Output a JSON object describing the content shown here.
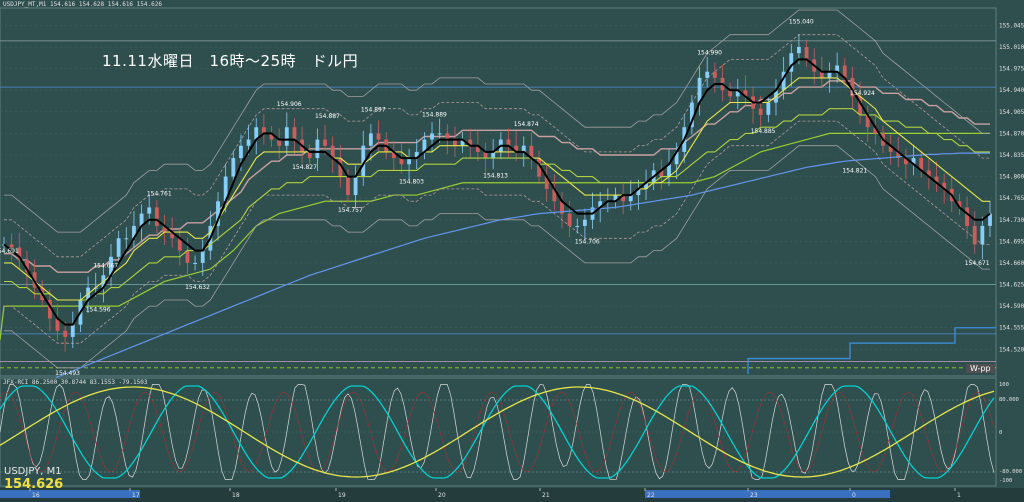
{
  "header": {
    "symbol_line": "USDJPY_MT,M1  154.616 154.628 154.616 154.626",
    "title": "11.11水曜日　16時～25時　ドル円"
  },
  "bottom_left": {
    "symbol": "USDJPY, M1",
    "price": "154.626"
  },
  "indicator_header": "JFX-RCI 86.2500 30.8744 83.1553 -79.1503",
  "wpp_label": "W-pp",
  "colors": {
    "background": "#2f4f4f",
    "candle_up": "#87cefa",
    "candle_down": "#cd5c5c",
    "ma_black": "#000000",
    "ma_yellow": "#e6e64a",
    "ma_lightgreen": "#b0d040",
    "step_green": "#9acd32",
    "ma_blue": "#6495ed",
    "band_gray": "#a0a0a0",
    "envelope_rose": "#b49a9a",
    "rci_white": "#dcdcdc",
    "rci_cyan": "#00d0d0",
    "rci_yellow": "#e6e64a",
    "rci_red": "#a03030"
  },
  "chart_data": {
    "type": "candlestick",
    "price_axis_ticks": [
      "155.045",
      "155.010",
      "154.975",
      "154.940",
      "154.905",
      "154.870",
      "154.835",
      "154.800",
      "154.765",
      "154.730",
      "154.695",
      "154.660",
      "154.625",
      "154.590",
      "154.555",
      "154.520"
    ],
    "price_axis_range": [
      154.48,
      155.07
    ],
    "time_ticks": [
      "16",
      "17",
      "18",
      "19",
      "20",
      "21",
      "22",
      "23",
      "0",
      "1"
    ],
    "annotations": [
      {
        "label": "154.691",
        "x": 0.0,
        "price": 154.691
      },
      {
        "label": "154.667",
        "x": 12.5,
        "price": 154.667
      },
      {
        "label": "154.596",
        "x": 12.0,
        "price": 154.596
      },
      {
        "label": "154.493",
        "x": 8.3,
        "price": 154.493
      },
      {
        "label": "154.761",
        "x": 20.0,
        "price": 154.761
      },
      {
        "label": "154.632",
        "x": 25.0,
        "price": 154.632
      },
      {
        "label": "154.906",
        "x": 37.0,
        "price": 154.906
      },
      {
        "label": "154.887",
        "x": 42.0,
        "price": 154.887
      },
      {
        "label": "154.827",
        "x": 38.5,
        "price": 154.827
      },
      {
        "label": "154.897",
        "x": 48.0,
        "price": 154.897
      },
      {
        "label": "154.757",
        "x": 45.0,
        "price": 154.757
      },
      {
        "label": "154.889",
        "x": 56.0,
        "price": 154.889
      },
      {
        "label": "154.803",
        "x": 52.5,
        "price": 154.803
      },
      {
        "label": "154.813",
        "x": 64.0,
        "price": 154.813
      },
      {
        "label": "154.874",
        "x": 68.0,
        "price": 154.874
      },
      {
        "label": "154.706",
        "x": 75.5,
        "price": 154.706
      },
      {
        "label": "154.990",
        "x": 92.0,
        "price": 154.99
      },
      {
        "label": "154.885",
        "x": 98.5,
        "price": 154.885
      },
      {
        "label": "155.040",
        "x": 103.5,
        "price": 155.04
      },
      {
        "label": "154.924",
        "x": 112.0,
        "price": 154.924
      },
      {
        "label": "154.821",
        "x": 111.0,
        "price": 154.821
      },
      {
        "label": "154.671",
        "x": 126.5,
        "price": 154.671
      }
    ],
    "closes": [
      154.69,
      154.685,
      154.665,
      154.645,
      154.62,
      154.6,
      154.57,
      154.55,
      154.54,
      154.56,
      154.6,
      154.62,
      154.62,
      154.64,
      154.67,
      154.7,
      154.7,
      154.72,
      154.74,
      154.75,
      154.72,
      154.71,
      154.7,
      154.68,
      154.66,
      154.66,
      154.68,
      154.72,
      154.76,
      154.8,
      154.83,
      154.85,
      154.86,
      154.88,
      154.87,
      154.86,
      154.85,
      154.88,
      154.86,
      154.84,
      154.83,
      154.86,
      154.85,
      154.83,
      154.8,
      154.77,
      154.8,
      154.85,
      154.87,
      154.86,
      154.84,
      154.83,
      154.82,
      154.83,
      154.84,
      154.86,
      154.87,
      154.87,
      154.86,
      154.85,
      154.86,
      154.85,
      154.84,
      154.83,
      154.84,
      154.86,
      154.85,
      154.84,
      154.85,
      154.83,
      154.8,
      154.78,
      154.76,
      154.74,
      154.72,
      154.72,
      154.73,
      154.75,
      154.76,
      154.76,
      154.77,
      154.76,
      154.77,
      154.78,
      154.79,
      154.81,
      154.8,
      154.82,
      154.84,
      154.88,
      154.92,
      154.96,
      154.97,
      154.96,
      154.94,
      154.93,
      154.94,
      154.93,
      154.91,
      154.9,
      154.92,
      154.94,
      154.97,
      155.0,
      155.01,
      154.99,
      154.97,
      154.96,
      154.97,
      154.98,
      154.96,
      154.93,
      154.9,
      154.88,
      154.87,
      154.85,
      154.84,
      154.83,
      154.82,
      154.83,
      154.81,
      154.8,
      154.79,
      154.78,
      154.76,
      154.75,
      154.72,
      154.69,
      154.72,
      154.74
    ],
    "black_ma": [
      154.69,
      154.68,
      154.67,
      154.65,
      154.63,
      154.61,
      154.59,
      154.57,
      154.56,
      154.56,
      154.58,
      154.6,
      154.61,
      154.62,
      154.64,
      154.66,
      154.68,
      154.7,
      154.72,
      154.73,
      154.73,
      154.72,
      154.71,
      154.7,
      154.69,
      154.68,
      154.68,
      154.7,
      154.73,
      154.76,
      154.79,
      154.82,
      154.84,
      154.86,
      154.87,
      154.87,
      154.86,
      154.86,
      154.86,
      154.85,
      154.84,
      154.84,
      154.84,
      154.83,
      154.82,
      154.8,
      154.8,
      154.82,
      154.84,
      154.85,
      154.85,
      154.84,
      154.83,
      154.83,
      154.83,
      154.84,
      154.85,
      154.86,
      154.86,
      154.86,
      154.86,
      154.85,
      154.85,
      154.84,
      154.84,
      154.85,
      154.85,
      154.84,
      154.84,
      154.83,
      154.82,
      154.8,
      154.78,
      154.76,
      154.75,
      154.74,
      154.74,
      154.74,
      154.75,
      154.76,
      154.76,
      154.77,
      154.77,
      154.78,
      154.79,
      154.8,
      154.81,
      154.82,
      154.84,
      154.86,
      154.89,
      154.92,
      154.94,
      154.95,
      154.95,
      154.94,
      154.94,
      154.93,
      154.92,
      154.92,
      154.93,
      154.94,
      154.96,
      154.98,
      154.99,
      154.99,
      154.98,
      154.97,
      154.97,
      154.97,
      154.96,
      154.94,
      154.92,
      154.9,
      154.88,
      154.86,
      154.85,
      154.84,
      154.83,
      154.82,
      154.81,
      154.8,
      154.79,
      154.78,
      154.77,
      154.75,
      154.74,
      154.73,
      154.73,
      154.74
    ],
    "yellow_ma": [
      154.66,
      154.66,
      154.65,
      154.64,
      154.63,
      154.62,
      154.61,
      154.6,
      154.6,
      154.6,
      154.6,
      154.61,
      154.62,
      154.63,
      154.64,
      154.65,
      154.66,
      154.68,
      154.69,
      154.7,
      154.7,
      154.71,
      154.71,
      154.71,
      154.71,
      154.7,
      154.7,
      154.71,
      154.73,
      154.75,
      154.77,
      154.79,
      154.81,
      154.83,
      154.84,
      154.84,
      154.84,
      154.84,
      154.84,
      154.84,
      154.84,
      154.84,
      154.84,
      154.83,
      154.83,
      154.82,
      154.82,
      154.82,
      154.83,
      154.84,
      154.84,
      154.84,
      154.84,
      154.83,
      154.83,
      154.84,
      154.84,
      154.85,
      154.85,
      154.85,
      154.85,
      154.85,
      154.85,
      154.84,
      154.84,
      154.84,
      154.84,
      154.84,
      154.84,
      154.83,
      154.83,
      154.82,
      154.81,
      154.8,
      154.79,
      154.78,
      154.77,
      154.77,
      154.77,
      154.77,
      154.77,
      154.77,
      154.77,
      154.78,
      154.78,
      154.79,
      154.79,
      154.8,
      154.81,
      154.83,
      154.85,
      154.87,
      154.89,
      154.9,
      154.91,
      154.92,
      154.92,
      154.92,
      154.92,
      154.92,
      154.92,
      154.93,
      154.94,
      154.95,
      154.96,
      154.96,
      154.96,
      154.96,
      154.96,
      154.96,
      154.95,
      154.94,
      154.93,
      154.92,
      154.91,
      154.89,
      154.88,
      154.87,
      154.86,
      154.85,
      154.84,
      154.83,
      154.82,
      154.81,
      154.8,
      154.79,
      154.78,
      154.77,
      154.76,
      154.76
    ],
    "lightgreen_ma": [
      154.63,
      154.63,
      154.62,
      154.62,
      154.61,
      154.61,
      154.61,
      154.6,
      154.6,
      154.6,
      154.6,
      154.6,
      154.61,
      154.61,
      154.62,
      154.62,
      154.63,
      154.64,
      154.65,
      154.66,
      154.66,
      154.67,
      154.67,
      154.67,
      154.68,
      154.68,
      154.68,
      154.69,
      154.7,
      154.71,
      154.72,
      154.73,
      154.75,
      154.76,
      154.77,
      154.78,
      154.78,
      154.79,
      154.79,
      154.79,
      154.8,
      154.8,
      154.8,
      154.8,
      154.8,
      154.8,
      154.8,
      154.8,
      154.8,
      154.81,
      154.81,
      154.81,
      154.81,
      154.81,
      154.81,
      154.82,
      154.82,
      154.82,
      154.82,
      154.82,
      154.83,
      154.83,
      154.83,
      154.83,
      154.83,
      154.83,
      154.83,
      154.83,
      154.83,
      154.83,
      154.82,
      154.82,
      154.82,
      154.81,
      154.81,
      154.8,
      154.8,
      154.8,
      154.79,
      154.79,
      154.79,
      154.79,
      154.79,
      154.79,
      154.79,
      154.79,
      154.8,
      154.8,
      154.8,
      154.81,
      154.82,
      154.83,
      154.84,
      154.84,
      154.85,
      154.86,
      154.86,
      154.87,
      154.87,
      154.88,
      154.88,
      154.88,
      154.89,
      154.89,
      154.9,
      154.9,
      154.9,
      154.9,
      154.91,
      154.91,
      154.91,
      154.91,
      154.9,
      154.9,
      154.9,
      154.89,
      154.89,
      154.89,
      154.88,
      154.88,
      154.88,
      154.87,
      154.87,
      154.86,
      154.86,
      154.85,
      154.85,
      154.84,
      154.84,
      154.84
    ],
    "blue_ma": [
      154.44,
      154.445,
      154.45,
      154.455,
      154.46,
      154.465,
      154.47,
      154.475,
      154.48,
      154.485,
      154.49,
      154.495,
      154.5,
      154.505,
      154.51,
      154.515,
      154.52,
      154.525,
      154.53,
      154.535,
      154.54,
      154.545,
      154.55,
      154.555,
      154.56,
      154.565,
      154.57,
      154.575,
      154.58,
      154.585,
      154.59,
      154.595,
      154.6,
      154.605,
      154.61,
      154.615,
      154.62,
      154.625,
      154.63,
      154.635,
      154.64,
      154.644,
      154.648,
      154.652,
      154.656,
      154.66,
      154.664,
      154.668,
      154.672,
      154.676,
      154.68,
      154.684,
      154.688,
      154.692,
      154.696,
      154.7,
      154.703,
      154.706,
      154.709,
      154.712,
      154.715,
      154.718,
      154.721,
      154.724,
      154.727,
      154.73,
      154.732,
      154.734,
      154.736,
      154.738,
      154.74,
      154.741,
      154.742,
      154.743,
      154.744,
      154.745,
      154.746,
      154.747,
      154.748,
      154.749,
      154.75,
      154.752,
      154.754,
      154.756,
      154.758,
      154.76,
      154.762,
      154.764,
      154.766,
      154.768,
      154.77,
      154.773,
      154.776,
      154.779,
      154.782,
      154.785,
      154.788,
      154.791,
      154.794,
      154.797,
      154.8,
      154.803,
      154.806,
      154.809,
      154.812,
      154.815,
      154.817,
      154.819,
      154.821,
      154.823,
      154.825,
      154.826,
      154.827,
      154.828,
      154.829,
      154.83,
      154.831,
      154.832,
      154.833,
      154.834,
      154.835,
      154.836,
      154.836,
      154.837,
      154.837,
      154.838,
      154.838,
      154.838,
      154.838,
      154.838
    ]
  }
}
